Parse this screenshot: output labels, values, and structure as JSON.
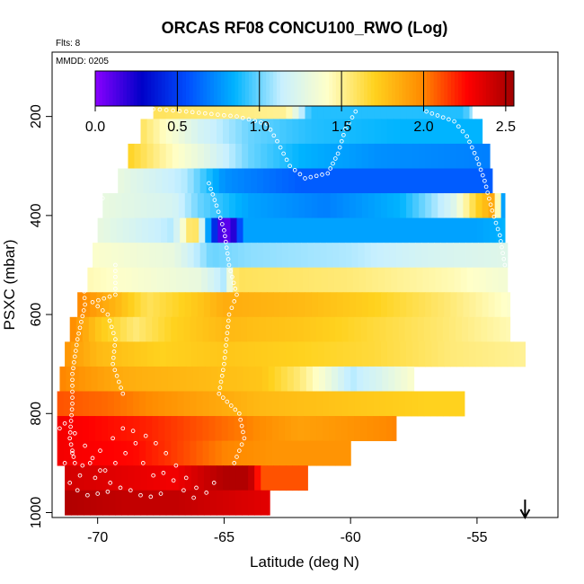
{
  "chart_data": {
    "type": "heatmap",
    "title": "ORCAS RF08 CONCU100_RWO (Log)",
    "flights_note": "Flts: 8",
    "date_note": "MMDD: 0205",
    "xlabel": "Latitude (deg N)",
    "ylabel": "PSXC (mbar)",
    "xlim": [
      -71.8,
      -51.8
    ],
    "ylim": [
      1010,
      70
    ],
    "x_ticks": [
      -70,
      -65,
      -60,
      -55
    ],
    "x_tick_labels": [
      "-70",
      "-65",
      "-60",
      "-55"
    ],
    "y_ticks": [
      200,
      400,
      600,
      800,
      1000
    ],
    "y_tick_labels": [
      "200",
      "400",
      "600",
      "800",
      "1000"
    ],
    "colorbar": {
      "range": [
        0,
        2.55
      ],
      "ticks": [
        0.0,
        0.5,
        1.0,
        1.5,
        2.0,
        2.5
      ],
      "tick_labels": [
        "0.0",
        "0.5",
        "1.0",
        "1.5",
        "2.0",
        "2.5"
      ],
      "colors": [
        "#8a00ff",
        "#0000c8",
        "#0050ff",
        "#00b4ff",
        "#c8f0ff",
        "#ffffc8",
        "#ffd21e",
        "#ff8c00",
        "#ff0000",
        "#a00000"
      ]
    },
    "arrow_marker_latitude": -53.1,
    "layers": [
      {
        "p": 180,
        "lat_min": -67.8,
        "lat_max": -55.2,
        "pts": [
          [
            -67.8,
            1.6
          ],
          [
            -62.5,
            1.5
          ],
          [
            -61.6,
            0.9
          ],
          [
            -55.5,
            0.9
          ],
          [
            -55.2,
            1.1
          ]
        ]
      },
      {
        "p": 230,
        "lat_min": -68.3,
        "lat_max": -54.8,
        "pts": [
          [
            -68.3,
            1.6
          ],
          [
            -67.5,
            1.45
          ],
          [
            -66,
            1.2
          ],
          [
            -64,
            1.0
          ],
          [
            -61.5,
            0.9
          ],
          [
            -58,
            0.85
          ],
          [
            -54.8,
            0.85
          ]
        ]
      },
      {
        "p": 280,
        "lat_min": -68.8,
        "lat_max": -54.5,
        "pts": [
          [
            -68.8,
            1.7
          ],
          [
            -67.5,
            1.5
          ],
          [
            -66,
            1.3
          ],
          [
            -64,
            1.0
          ],
          [
            -62,
            0.85
          ],
          [
            -59,
            0.75
          ],
          [
            -54.5,
            0.7
          ]
        ]
      },
      {
        "p": 330,
        "lat_min": -69.2,
        "lat_max": -54.4,
        "pts": [
          [
            -69.2,
            1.3
          ],
          [
            -66.5,
            1.1
          ],
          [
            -65,
            0.75
          ],
          [
            -62,
            0.6
          ],
          [
            -58,
            0.6
          ],
          [
            -54.4,
            0.6
          ]
        ]
      },
      {
        "p": 380,
        "lat_min": -69.8,
        "lat_max": -53.9,
        "pts": [
          [
            -69.8,
            1.3
          ],
          [
            -67,
            1.2
          ],
          [
            -66,
            1.0
          ],
          [
            -64,
            0.8
          ],
          [
            -61,
            0.7
          ],
          [
            -58,
            0.85
          ],
          [
            -56,
            1.2
          ],
          [
            -55,
            1.7
          ],
          [
            -54.3,
            1.9
          ],
          [
            -54.0,
            0.8
          ]
        ]
      },
      {
        "p": 430,
        "lat_min": -70.0,
        "lat_max": -53.9,
        "pts": [
          [
            -70,
            1.3
          ],
          [
            -67,
            1.1
          ],
          [
            -66.2,
            1.7
          ],
          [
            -65.5,
            0.6
          ],
          [
            -65.1,
            0.1
          ],
          [
            -64.7,
            0.1
          ],
          [
            -64.2,
            0.8
          ],
          [
            -60,
            0.8
          ],
          [
            -55,
            0.8
          ],
          [
            -53.9,
            0.85
          ]
        ]
      },
      {
        "p": 480,
        "lat_min": -70.2,
        "lat_max": -53.8,
        "pts": [
          [
            -70.2,
            1.4
          ],
          [
            -67,
            1.3
          ],
          [
            -65.5,
            1.0
          ],
          [
            -64,
            1.05
          ],
          [
            -60,
            1.1
          ],
          [
            -57,
            1.2
          ],
          [
            -53.8,
            1.25
          ]
        ]
      },
      {
        "p": 530,
        "lat_min": -70.4,
        "lat_max": -53.8,
        "pts": [
          [
            -70.4,
            1.45
          ],
          [
            -66,
            1.3
          ],
          [
            -65,
            1.1
          ],
          [
            -64.5,
            1.6
          ],
          [
            -60,
            1.55
          ],
          [
            -56,
            1.45
          ],
          [
            -53.8,
            1.35
          ]
        ]
      },
      {
        "p": 580,
        "lat_min": -70.8,
        "lat_max": -53.7,
        "pts": [
          [
            -70.8,
            2.0
          ],
          [
            -69.2,
            1.8
          ],
          [
            -68,
            1.6
          ],
          [
            -66,
            1.75
          ],
          [
            -65,
            1.85
          ],
          [
            -62,
            1.8
          ],
          [
            -59,
            1.7
          ],
          [
            -56,
            1.55
          ],
          [
            -53.7,
            1.4
          ]
        ]
      },
      {
        "p": 630,
        "lat_min": -71.1,
        "lat_max": -53.7,
        "pts": [
          [
            -71.1,
            2.0
          ],
          [
            -70,
            1.75
          ],
          [
            -68.5,
            1.55
          ],
          [
            -67,
            1.7
          ],
          [
            -65,
            1.8
          ],
          [
            -62,
            1.75
          ],
          [
            -59,
            1.65
          ],
          [
            -56,
            1.55
          ],
          [
            -53.7,
            1.45
          ]
        ]
      },
      {
        "p": 680,
        "lat_min": -71.3,
        "lat_max": -53.1,
        "pts": [
          [
            -71.3,
            1.95
          ],
          [
            -70,
            1.8
          ],
          [
            -67.5,
            1.7
          ],
          [
            -65,
            1.75
          ],
          [
            -62,
            1.7
          ],
          [
            -59,
            1.65
          ],
          [
            -56,
            1.55
          ],
          [
            -53.1,
            1.5
          ]
        ]
      },
      {
        "p": 730,
        "lat_min": -71.5,
        "lat_max": -57.5,
        "pts": [
          [
            -71.5,
            2.0
          ],
          [
            -69,
            1.85
          ],
          [
            -66,
            1.8
          ],
          [
            -63.5,
            1.75
          ],
          [
            -62,
            1.55
          ],
          [
            -61,
            1.35
          ],
          [
            -60,
            1.1
          ],
          [
            -59,
            1.2
          ],
          [
            -57.5,
            1.4
          ]
        ]
      },
      {
        "p": 780,
        "lat_min": -71.6,
        "lat_max": -55.5,
        "pts": [
          [
            -71.6,
            2.1
          ],
          [
            -69.5,
            2.05
          ],
          [
            -66,
            1.9
          ],
          [
            -63.5,
            1.8
          ],
          [
            -60,
            1.75
          ],
          [
            -57,
            1.7
          ],
          [
            -55.5,
            1.7
          ]
        ]
      },
      {
        "p": 830,
        "lat_min": -71.6,
        "lat_max": -58.2,
        "pts": [
          [
            -71.6,
            2.3
          ],
          [
            -68,
            2.2
          ],
          [
            -65,
            2.05
          ],
          [
            -62,
            1.9
          ],
          [
            -60,
            1.95
          ],
          [
            -58.2,
            2.0
          ]
        ]
      },
      {
        "p": 880,
        "lat_min": -71.6,
        "lat_max": -60.0,
        "pts": [
          [
            -71.6,
            2.3
          ],
          [
            -68.5,
            2.25
          ],
          [
            -67,
            2.15
          ],
          [
            -65,
            2.0
          ],
          [
            -63,
            1.95
          ],
          [
            -61,
            1.95
          ],
          [
            -60,
            1.95
          ]
        ]
      },
      {
        "p": 930,
        "lat_min": -71.3,
        "lat_max": -61.7,
        "pts": [
          [
            -71.3,
            2.4
          ],
          [
            -69,
            2.35
          ],
          [
            -67,
            2.3
          ],
          [
            -65,
            2.5
          ],
          [
            -64,
            2.5
          ],
          [
            -63.5,
            2.1
          ],
          [
            -61.7,
            2.1
          ]
        ]
      },
      {
        "p": 980,
        "lat_min": -71.3,
        "lat_max": -63.2,
        "pts": [
          [
            -71.3,
            2.5
          ],
          [
            -69,
            2.45
          ],
          [
            -67,
            2.45
          ],
          [
            -65,
            2.4
          ],
          [
            -63.2,
            2.35
          ]
        ]
      }
    ],
    "flight_tracks": [
      [
        [
          -67.8,
          185
        ],
        [
          -66.5,
          190
        ],
        [
          -64.5,
          200
        ],
        [
          -63.3,
          215
        ],
        [
          -62.9,
          250
        ],
        [
          -62.4,
          300
        ],
        [
          -61.8,
          325
        ],
        [
          -60.9,
          315
        ],
        [
          -60.5,
          275
        ],
        [
          -60.2,
          225
        ],
        [
          -59.8,
          190
        ]
      ],
      [
        [
          -57.0,
          190
        ],
        [
          -55.9,
          210
        ],
        [
          -55.4,
          240
        ],
        [
          -55.0,
          285
        ],
        [
          -54.7,
          330
        ],
        [
          -54.4,
          390
        ],
        [
          -54.1,
          440
        ],
        [
          -53.9,
          500
        ]
      ],
      [
        [
          -69.3,
          500
        ],
        [
          -69.3,
          560
        ],
        [
          -70.2,
          575
        ],
        [
          -69.6,
          600
        ],
        [
          -69.3,
          650
        ],
        [
          -69.4,
          700
        ],
        [
          -69.0,
          760
        ]
      ],
      [
        [
          -65.6,
          335
        ],
        [
          -65.3,
          380
        ],
        [
          -65.0,
          430
        ],
        [
          -64.8,
          500
        ],
        [
          -64.5,
          560
        ],
        [
          -64.8,
          600
        ],
        [
          -64.9,
          650
        ],
        [
          -65.0,
          700
        ],
        [
          -65.2,
          760
        ],
        [
          -64.4,
          800
        ],
        [
          -64.2,
          850
        ],
        [
          -64.6,
          900
        ]
      ],
      [
        [
          -69.8,
          365
        ],
        [
          -70.3,
          430
        ],
        [
          -70.6,
          500
        ],
        [
          -70.5,
          580
        ],
        [
          -70.8,
          650
        ],
        [
          -71.0,
          720
        ],
        [
          -71.0,
          780
        ],
        [
          -71.1,
          850
        ],
        [
          -70.9,
          900
        ]
      ]
    ],
    "surface_points": [
      [
        -71.3,
        820
      ],
      [
        -70.9,
        840
      ],
      [
        -70.5,
        865
      ],
      [
        -70.2,
        890
      ],
      [
        -69.9,
        915
      ],
      [
        -69.5,
        940
      ],
      [
        -70.8,
        955
      ],
      [
        -70.4,
        965
      ],
      [
        -70.0,
        962
      ],
      [
        -69.6,
        958
      ],
      [
        -69.1,
        950
      ],
      [
        -68.7,
        955
      ],
      [
        -68.3,
        965
      ],
      [
        -67.9,
        968
      ],
      [
        -67.5,
        962
      ],
      [
        -71.0,
        880
      ],
      [
        -70.6,
        905
      ],
      [
        -70.1,
        930
      ],
      [
        -69.7,
        915
      ],
      [
        -69.3,
        900
      ],
      [
        -68.9,
        880
      ],
      [
        -68.5,
        860
      ],
      [
        -68.1,
        845
      ],
      [
        -67.7,
        860
      ],
      [
        -67.3,
        880
      ],
      [
        -66.9,
        905
      ],
      [
        -66.5,
        930
      ],
      [
        -66.1,
        950
      ],
      [
        -65.7,
        960
      ],
      [
        -65.4,
        940
      ],
      [
        -71.5,
        830
      ],
      [
        -71.3,
        900
      ],
      [
        -71.1,
        940
      ],
      [
        -70.7,
        925
      ],
      [
        -70.3,
        900
      ],
      [
        -69.9,
        875
      ],
      [
        -69.4,
        850
      ],
      [
        -69.0,
        830
      ],
      [
        -68.6,
        835
      ],
      [
        -68.2,
        900
      ],
      [
        -67.8,
        925
      ],
      [
        -67.4,
        920
      ],
      [
        -67.0,
        935
      ],
      [
        -66.6,
        955
      ],
      [
        -66.2,
        970
      ]
    ]
  }
}
